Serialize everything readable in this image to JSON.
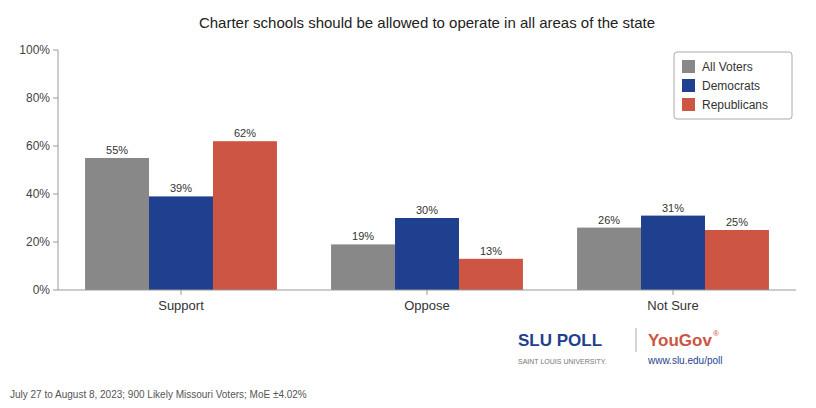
{
  "chart_data": {
    "type": "bar",
    "title": "Charter schools should be allowed to operate in all areas of the state",
    "categories": [
      "Support",
      "Oppose",
      "Not Sure"
    ],
    "series": [
      {
        "name": "All Voters",
        "color": "#888888",
        "values": [
          55,
          19,
          26
        ],
        "value_labels": [
          "55%",
          "19%",
          "26%"
        ]
      },
      {
        "name": "Democrats",
        "color": "#1f3f8f",
        "values": [
          39,
          30,
          31
        ],
        "value_labels": [
          "39%",
          "30%",
          "31%"
        ]
      },
      {
        "name": "Republicans",
        "color": "#cc5544",
        "values": [
          62,
          13,
          25
        ],
        "value_labels": [
          "62%",
          "13%",
          "25%"
        ]
      }
    ],
    "ylim": [
      0,
      100
    ],
    "yticks": [
      {
        "value": 0,
        "label": "0%"
      },
      {
        "value": 20,
        "label": "20%"
      },
      {
        "value": 40,
        "label": "40%"
      },
      {
        "value": 60,
        "label": "60%"
      },
      {
        "value": 80,
        "label": "80%"
      },
      {
        "value": 100,
        "label": "100%"
      }
    ],
    "grid": false,
    "legend": "upper right",
    "data_labels": true,
    "annotations": [
      {
        "text": "July 27 to August 8, 2023; 900 Likely Missouri Voters; MoE ±4.02%"
      },
      {
        "text": "SLU POLL",
        "color": "#1f3f8f"
      },
      {
        "text": "SAINT LOUIS UNIVERSITY."
      },
      {
        "text": "YouGov",
        "color": "#cc5544"
      },
      {
        "text": "®",
        "color": "#cc5544"
      },
      {
        "text": "www.slu.edu/poll",
        "color": "#1f3f8f"
      }
    ]
  }
}
